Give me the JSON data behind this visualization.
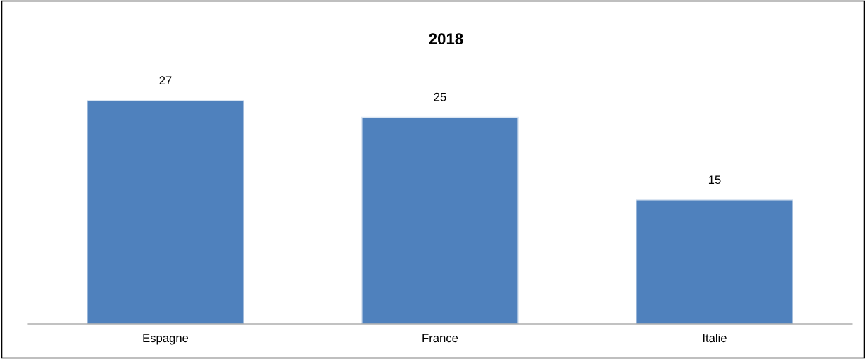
{
  "chart_data": {
    "type": "bar",
    "title": "2018",
    "categories": [
      "Espagne",
      "France",
      "Italie"
    ],
    "values": [
      27,
      25,
      15
    ],
    "color": "#4f81bd",
    "data_labels": true,
    "tick_labels": "x",
    "grid": false,
    "legend": false
  }
}
